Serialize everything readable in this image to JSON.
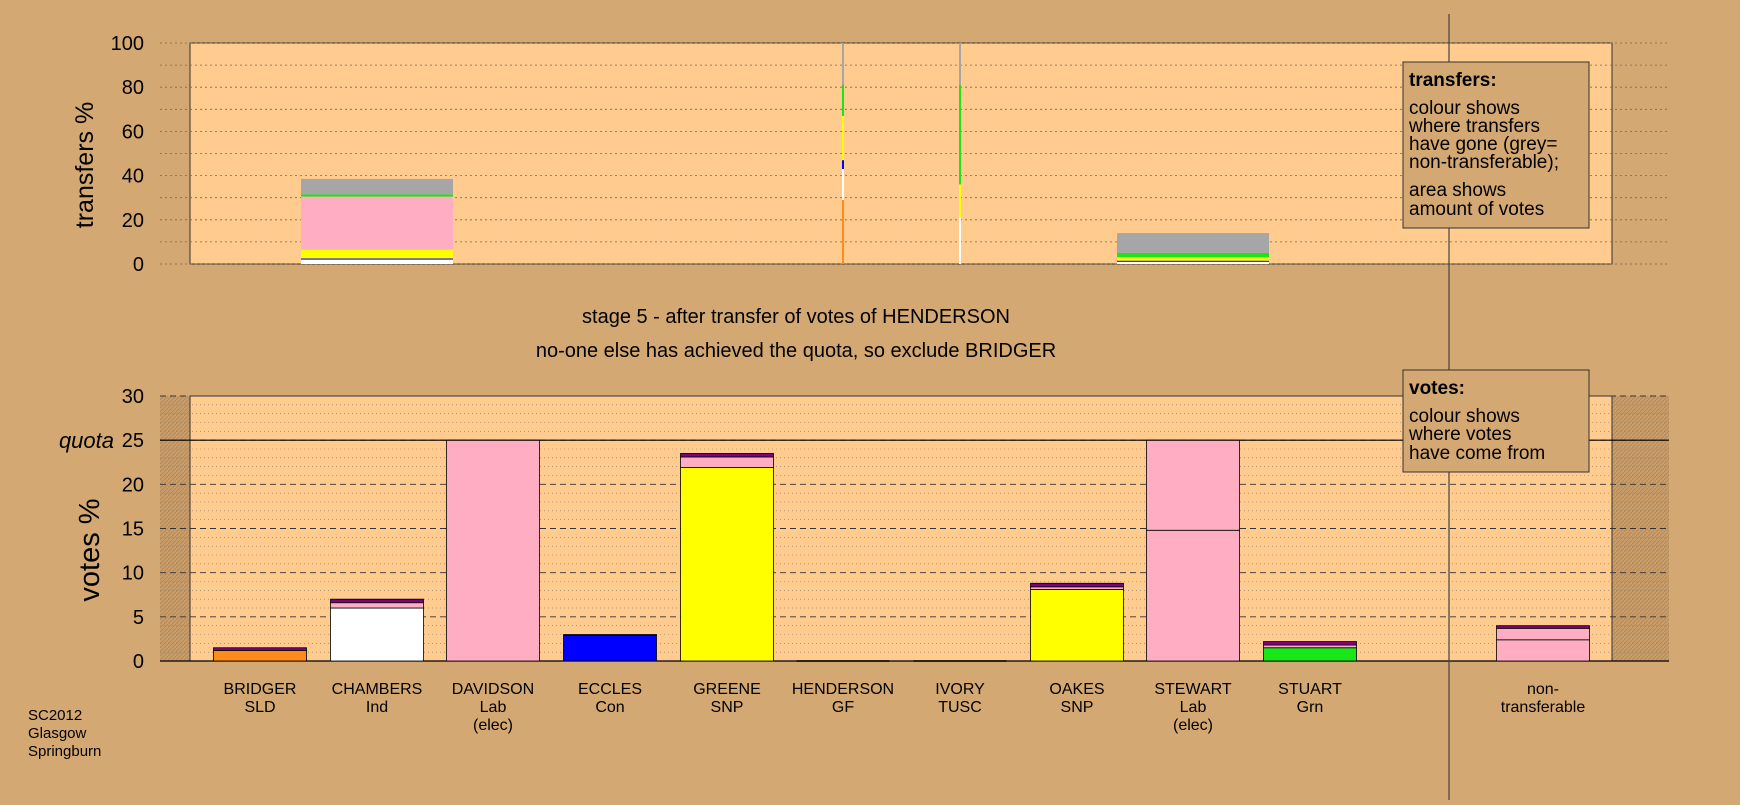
{
  "colors": {
    "background": "#d4a872",
    "panel": "#ffcb8f",
    "BRIDGER": "#ff8c19",
    "CHAMBERS": "#ffffff",
    "DAVIDSON": "#ffadc2",
    "ECCLES": "#0000ff",
    "GREENE": "#ffff00",
    "OAKES": "#ffff00",
    "STEWART": "#ffadc2",
    "STUART": "#19e619",
    "non-transferable": "#a6a6a6"
  },
  "headline": "stage 5 - after transfer of votes of HENDERSON",
  "subheadline": "no-one else has achieved the quota, so exclude BRIDGER",
  "footer": [
    "SC2012",
    "Glasgow",
    "Springburn"
  ],
  "transfers_legend": {
    "title": "transfers:",
    "body1": [
      "colour shows",
      "where transfers",
      "have gone (grey=",
      "non-transferable);"
    ],
    "body2": [
      "area shows",
      "amount of votes"
    ]
  },
  "votes_legend": {
    "title": "votes:",
    "body": [
      "colour shows",
      "where votes",
      "have come from"
    ]
  },
  "chart_data": [
    {
      "type": "bar",
      "ylabel": "transfers %",
      "ylim": [
        0,
        100
      ],
      "yticks": [
        0,
        20,
        40,
        60,
        80,
        100
      ],
      "grid": "dotted",
      "legend": "top-right",
      "columns": [
        {
          "segments": []
        },
        {
          "segments": [
            {
              "to": "CHAMBERS",
              "value": 2
            },
            {
              "to": "ECCLES",
              "value": 0.5
            },
            {
              "to": "GREENE",
              "value": 4
            },
            {
              "to": "DAVIDSON",
              "value": 24
            },
            {
              "to": "STUART",
              "value": 1
            },
            {
              "to": "non-transferable",
              "value": 7
            }
          ]
        },
        {
          "segments": []
        },
        {
          "segments": []
        },
        {
          "segments": []
        },
        {
          "segments": [
            {
              "to": "BRIDGER",
              "value": 29
            },
            {
              "to": "CHAMBERS",
              "value": 14
            },
            {
              "to": "ECCLES",
              "value": 4
            },
            {
              "to": "GREENE",
              "value": 20
            },
            {
              "to": "STUART",
              "value": 14
            },
            {
              "to": "non-transferable",
              "value": 19
            }
          ]
        },
        {
          "segments": [
            {
              "to": "CHAMBERS",
              "value": 21
            },
            {
              "to": "GREENE",
              "value": 15
            },
            {
              "to": "STUART",
              "value": 45
            },
            {
              "to": "non-transferable",
              "value": 19
            }
          ]
        },
        {
          "segments": []
        },
        {
          "segments": [
            {
              "to": "CHAMBERS",
              "value": 1
            },
            {
              "to": "ECCLES",
              "value": 0.5
            },
            {
              "to": "GREENE",
              "value": 1.5
            },
            {
              "to": "STUART",
              "value": 2
            },
            {
              "to": "non-transferable",
              "value": 9
            }
          ]
        },
        {
          "segments": []
        }
      ]
    },
    {
      "type": "bar",
      "ylabel": "votes %",
      "ylim": [
        0,
        30
      ],
      "yticks": [
        0,
        5,
        10,
        15,
        20,
        25,
        30
      ],
      "quota": 25,
      "quota_label": "quota",
      "grid": "dashed",
      "legend": "top-right",
      "categories": [
        [
          "BRIDGER",
          "SLD"
        ],
        [
          "CHAMBERS",
          "Ind"
        ],
        [
          "DAVIDSON",
          "Lab",
          "(elec)"
        ],
        [
          "ECCLES",
          "Con"
        ],
        [
          "GREENE",
          "SNP"
        ],
        [
          "HENDERSON",
          "GF"
        ],
        [
          "IVORY",
          "TUSC"
        ],
        [
          "OAKES",
          "SNP"
        ],
        [
          "STEWART",
          "Lab",
          "(elec)"
        ],
        [
          "STUART",
          "Grn"
        ],
        [
          "non-",
          "transferable"
        ]
      ],
      "columns": [
        {
          "segments": [
            {
              "from": "BRIDGER",
              "value": 1.2
            },
            {
              "from": "other",
              "value": 0.3
            }
          ]
        },
        {
          "segments": [
            {
              "from": "CHAMBERS",
              "value": 6.0
            },
            {
              "from": "DAVIDSON",
              "value": 0.6
            },
            {
              "from": "other",
              "value": 0.4
            }
          ]
        },
        {
          "segments": [
            {
              "from": "DAVIDSON",
              "value": 25.0
            }
          ]
        },
        {
          "segments": [
            {
              "from": "ECCLES",
              "value": 2.9
            },
            {
              "from": "other",
              "value": 0.1
            }
          ]
        },
        {
          "segments": [
            {
              "from": "GREENE",
              "value": 21.9
            },
            {
              "from": "DAVIDSON",
              "value": 1.2
            },
            {
              "from": "other",
              "value": 0.4
            }
          ]
        },
        {
          "segments": []
        },
        {
          "segments": []
        },
        {
          "segments": [
            {
              "from": "OAKES",
              "value": 8.1
            },
            {
              "from": "DAVIDSON",
              "value": 0.3
            },
            {
              "from": "other",
              "value": 0.4
            }
          ]
        },
        {
          "segments": [
            {
              "from": "STEWART",
              "value": 14.8
            },
            {
              "from": "DAVIDSON",
              "value": 10.2
            }
          ]
        },
        {
          "segments": [
            {
              "from": "STUART",
              "value": 1.5
            },
            {
              "from": "DAVIDSON",
              "value": 0.3
            },
            {
              "from": "other",
              "value": 0.4
            }
          ]
        },
        {
          "segments": [
            {
              "from": "DAVIDSON",
              "value": 2.4
            },
            {
              "from": "STEWART",
              "value": 1.3
            },
            {
              "from": "other",
              "value": 0.3
            }
          ]
        }
      ]
    }
  ]
}
